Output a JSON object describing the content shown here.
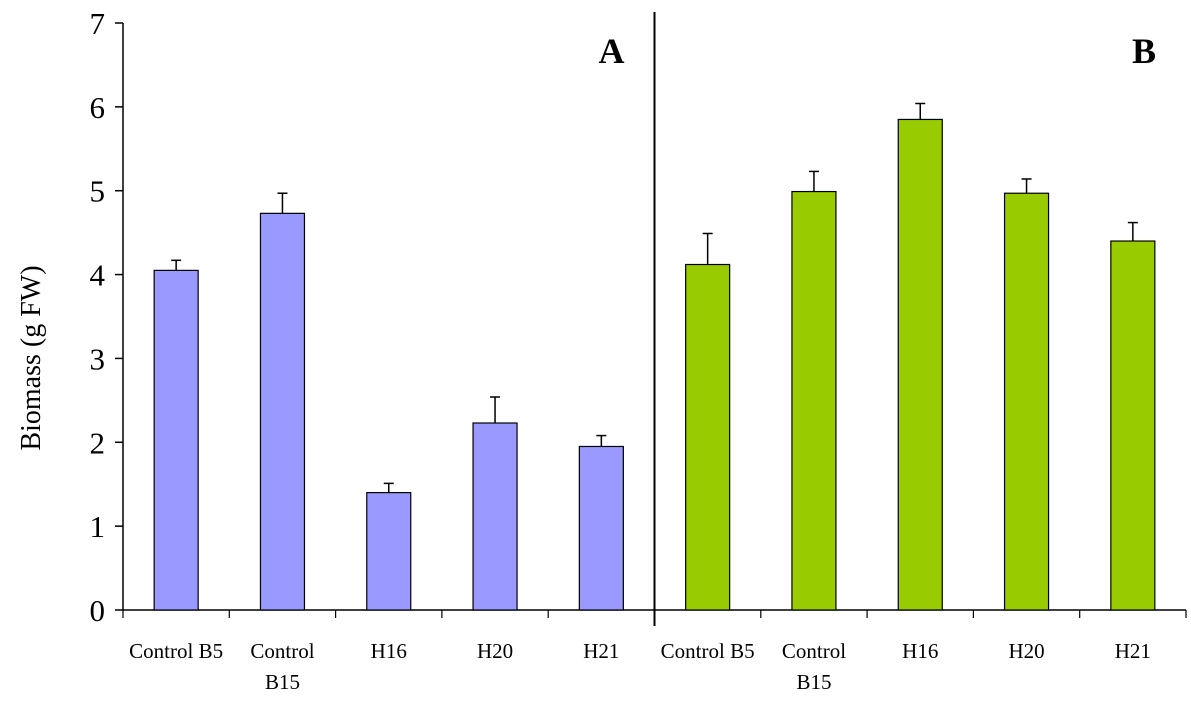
{
  "chart_data": {
    "type": "bar",
    "ylabel": "Biomass (g FW)",
    "ylim": [
      0,
      7
    ],
    "yticks": [
      0,
      1,
      2,
      3,
      4,
      5,
      6,
      7
    ],
    "grid": false,
    "legend": "none",
    "panels": [
      {
        "label": "A",
        "color": "#9999ff",
        "categories": [
          [
            "Control B5"
          ],
          [
            "Control",
            "B15"
          ],
          [
            "H16"
          ],
          [
            "H20"
          ],
          [
            "H21"
          ]
        ],
        "values": [
          4.05,
          4.73,
          1.4,
          2.23,
          1.95
        ],
        "errors": [
          0.12,
          0.24,
          0.11,
          0.31,
          0.13
        ]
      },
      {
        "label": "B",
        "color": "#99cc00",
        "categories": [
          [
            "Control B5"
          ],
          [
            "Control",
            "B15"
          ],
          [
            "H16"
          ],
          [
            "H20"
          ],
          [
            "H21"
          ]
        ],
        "values": [
          4.12,
          4.99,
          5.85,
          4.97,
          4.4
        ],
        "errors": [
          0.37,
          0.24,
          0.19,
          0.17,
          0.22
        ]
      }
    ]
  }
}
